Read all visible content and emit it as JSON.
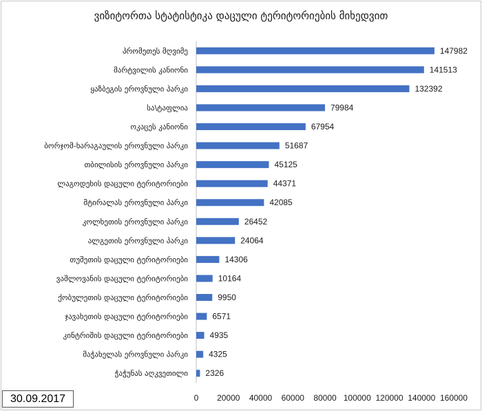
{
  "chart_data": {
    "type": "bar",
    "orientation": "horizontal",
    "title": "ვიზიტორთა სტატისტიკა დაცული ტერიტორიების მიხედვით",
    "categories": [
      "პრომეთეს მღვიმე",
      "მარტვილის კანიონი",
      "ყაზბეგის ეროვნული პარკი",
      "სა\\ტაფლია",
      "ოკაცეს კანიონი",
      "ბორჯომ-ხარაგაულის ეროვნული პარკი",
      "თბილისის ეროვნული პარკი",
      "ლაგოდეხის დაცული ტერიტორიები",
      "მტირალას ეროვნული პარკი",
      "კოლხეთის ეროვნული პარკი",
      "ალგეთის ეროვნული პარკი",
      "თუშეთის დაცული ტერიტორიები",
      "ვაშლოვანის დაცული ტერიტორიები",
      "ქობულეთის დაცული ტერიტორიები",
      "ჯავახეთის დაცული ტერიტორიები",
      "კინტრიშის დაცული ტერიტორიები",
      "მაჭახელას ეროვნული პარკი",
      "ჭაჭუნას აღკვეთილი"
    ],
    "values": [
      147982,
      141513,
      132392,
      79984,
      67954,
      51687,
      45125,
      44371,
      42085,
      26452,
      24064,
      14306,
      10164,
      9950,
      6571,
      4935,
      4325,
      2326
    ],
    "xlim": [
      0,
      160000
    ],
    "xticks": [
      0,
      20000,
      40000,
      60000,
      80000,
      100000,
      120000,
      140000,
      160000
    ],
    "bar_color": "#4472c4",
    "grid": false,
    "legend": "none",
    "date_label": "30.09.2017"
  }
}
